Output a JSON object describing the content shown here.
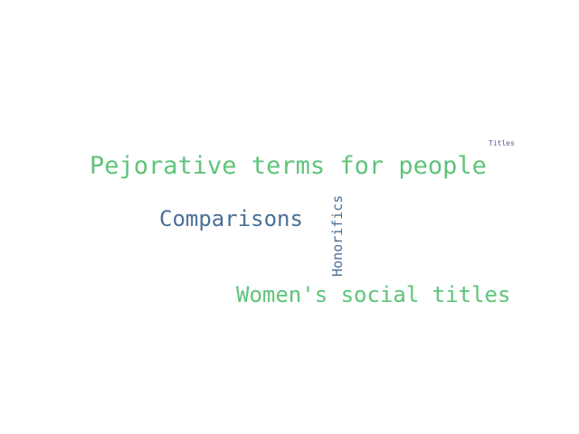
{
  "word_cloud": {
    "words": [
      {
        "text": "Pejorative terms for people",
        "color": "#5ec47a"
      },
      {
        "text": "Comparisons",
        "color": "#4a6f96"
      },
      {
        "text": "Honorifics",
        "color": "#4a6f96"
      },
      {
        "text": "Women's social titles",
        "color": "#5ec47a"
      },
      {
        "text": "Titles",
        "color": "#5a5a9a"
      }
    ]
  }
}
